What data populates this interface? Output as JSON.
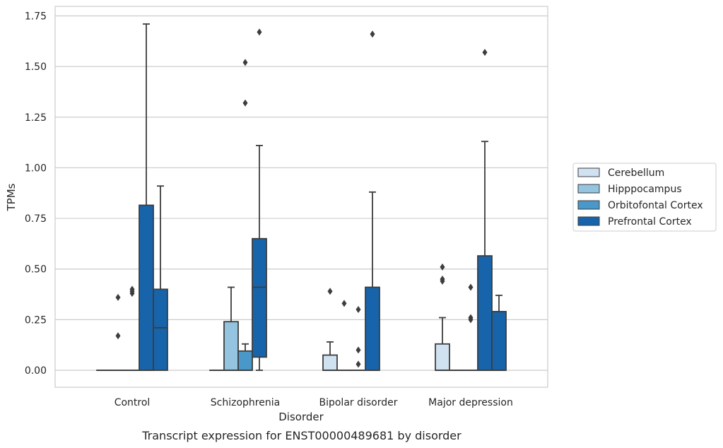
{
  "caption": "Transcript expression for ENST00000489681 by disorder",
  "chart_data": {
    "type": "box",
    "xlabel": "Disorder",
    "ylabel": "TPMs",
    "ylim": [
      -0.085,
      1.8
    ],
    "yticks": [
      "0.00",
      "0.25",
      "0.50",
      "0.75",
      "1.00",
      "1.25",
      "1.50",
      "1.75"
    ],
    "ytick_values": [
      0,
      0.25,
      0.5,
      0.75,
      1.0,
      1.25,
      1.5,
      1.75
    ],
    "grid": "horizontal",
    "legend_position": "right",
    "categories": [
      "Control",
      "Schizophrenia",
      "Bipolar disorder",
      "Major depression"
    ],
    "series": [
      {
        "name": "Cerebellum",
        "color": "#d0e1f2",
        "boxes": [
          {
            "q1": 0,
            "median": 0,
            "q3": 0,
            "whislo": 0,
            "whishi": 0,
            "fliers": []
          },
          {
            "q1": 0,
            "median": 0,
            "q3": 0,
            "whislo": 0,
            "whishi": 0,
            "fliers": []
          },
          {
            "q1": 0,
            "median": 0,
            "q3": 0.075,
            "whislo": 0,
            "whishi": 0.14,
            "fliers": [
              0.39
            ]
          },
          {
            "q1": 0,
            "median": 0,
            "q3": 0.13,
            "whislo": 0,
            "whishi": 0.26,
            "fliers": [
              0.44,
              0.45,
              0.51
            ]
          }
        ]
      },
      {
        "name": "Hipppocampus",
        "color": "#94c4df",
        "boxes": [
          {
            "q1": 0,
            "median": 0,
            "q3": 0,
            "whislo": 0,
            "whishi": 0,
            "fliers": [
              0.17,
              0.36
            ]
          },
          {
            "q1": 0,
            "median": 0,
            "q3": 0.24,
            "whislo": 0,
            "whishi": 0.41,
            "fliers": []
          },
          {
            "q1": 0,
            "median": 0,
            "q3": 0,
            "whislo": 0,
            "whishi": 0,
            "fliers": [
              0.33
            ]
          },
          {
            "q1": 0,
            "median": 0,
            "q3": 0,
            "whislo": 0,
            "whishi": 0,
            "fliers": []
          }
        ]
      },
      {
        "name": "Orbitofontal Cortex",
        "color": "#4a98c9",
        "boxes": [
          {
            "q1": 0,
            "median": 0,
            "q3": 0,
            "whislo": 0,
            "whishi": 0,
            "fliers": [
              0.38,
              0.39,
              0.4
            ]
          },
          {
            "q1": 0,
            "median": 0,
            "q3": 0.095,
            "whislo": 0,
            "whishi": 0.13,
            "fliers": [
              1.32,
              1.52
            ]
          },
          {
            "q1": 0,
            "median": 0,
            "q3": 0,
            "whislo": 0,
            "whishi": 0,
            "fliers": [
              0.03,
              0.1,
              0.3
            ]
          },
          {
            "q1": 0,
            "median": 0,
            "q3": 0,
            "whislo": 0,
            "whishi": 0,
            "fliers": [
              0.25,
              0.26,
              0.41
            ]
          }
        ]
      },
      {
        "name": "Prefrontal Cortex",
        "color": "#1764ab",
        "boxes": [
          {
            "q1": 0,
            "median": 0,
            "q3": 0.815,
            "whislo": 0,
            "whishi": 1.71,
            "fliers": []
          },
          {
            "q1": 0.065,
            "median": 0.41,
            "q3": 0.65,
            "whislo": 0,
            "whishi": 1.11,
            "fliers": [
              1.67
            ]
          },
          {
            "q1": 0,
            "median": 0,
            "q3": 0.41,
            "whislo": 0,
            "whishi": 0.88,
            "fliers": [
              1.66
            ]
          },
          {
            "q1": 0,
            "median": 0,
            "q3": 0.565,
            "whislo": 0,
            "whishi": 1.13,
            "fliers": [
              1.57
            ]
          }
        ]
      },
      {
        "name": "",
        "color": "#1764ab",
        "boxes": [
          {
            "q1": 0,
            "median": 0.21,
            "q3": 0.4,
            "whislo": 0,
            "whishi": 0.91,
            "fliers": []
          },
          null,
          null,
          {
            "q1": 0,
            "median": 0,
            "q3": 0.29,
            "whislo": 0,
            "whishi": 0.37,
            "fliers": []
          }
        ]
      }
    ]
  }
}
